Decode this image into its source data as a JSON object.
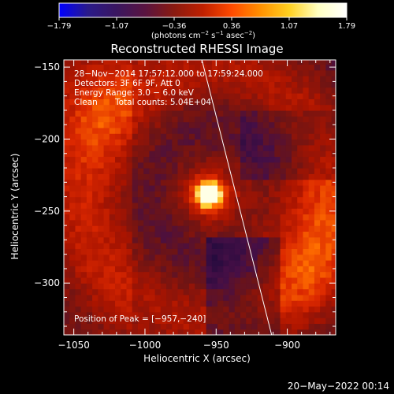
{
  "chart_data": {
    "type": "heatmap",
    "title": "Reconstructed RHESSI Image",
    "xlabel": "Heliocentric X (arcsec)",
    "ylabel": "Heliocentric Y (arcsec)",
    "xlim": [
      -1057,
      -866
    ],
    "ylim": [
      -336,
      -145
    ],
    "x_ticks": [
      {
        "value": -1050,
        "label": "−1050"
      },
      {
        "value": -1000,
        "label": "−1000"
      },
      {
        "value": -950,
        "label": "−950"
      },
      {
        "value": -900,
        "label": "−900"
      }
    ],
    "y_ticks": [
      {
        "value": -150,
        "label": "−150"
      },
      {
        "value": -200,
        "label": "−200"
      },
      {
        "value": -250,
        "label": "−250"
      },
      {
        "value": -300,
        "label": "−300"
      }
    ],
    "colorbar": {
      "range": [
        -1.79,
        1.79
      ],
      "tick_labels": [
        "−1.79",
        "−1.07",
        "−0.36",
        "0.36",
        "1.07",
        "1.79"
      ],
      "units_text": "(photons cm",
      "units_sup1": "−2",
      "units_mid": " s",
      "units_sup2": "−1",
      "units_end": " asec",
      "units_sup3": "−2",
      "units_close": ")",
      "colors": [
        "#0000ff",
        "#2a1a8a",
        "#3a1660",
        "#5a1440",
        "#8a1a10",
        "#c02000",
        "#ff4a00",
        "#ff9000",
        "#ffd020",
        "#ffffc0",
        "#ffffff"
      ]
    },
    "info_lines": [
      "28−Nov−2014 17:57:12.000 to 17:59:24.000",
      "Detectors: 3F 6F 9F, Att 0",
      "Energy Range: 3.0 − 6.0 keV"
    ],
    "clean_label": "Clean",
    "total_counts": "Total counts: 5.04E+04",
    "peak_text": "Position of Peak = [−957,−240]",
    "peak": [
      -957,
      -240
    ],
    "limb_line": [
      [
        -960,
        -145
      ],
      [
        -911,
        -336
      ]
    ],
    "secondary_sources": [
      {
        "x": -1040,
        "y": -175,
        "level": 0.55
      },
      {
        "x": -890,
        "y": -295,
        "level": 0.6
      },
      {
        "x": -885,
        "y": -245,
        "level": 0.5
      }
    ]
  },
  "footer_date": "20−May−2022 00:14"
}
